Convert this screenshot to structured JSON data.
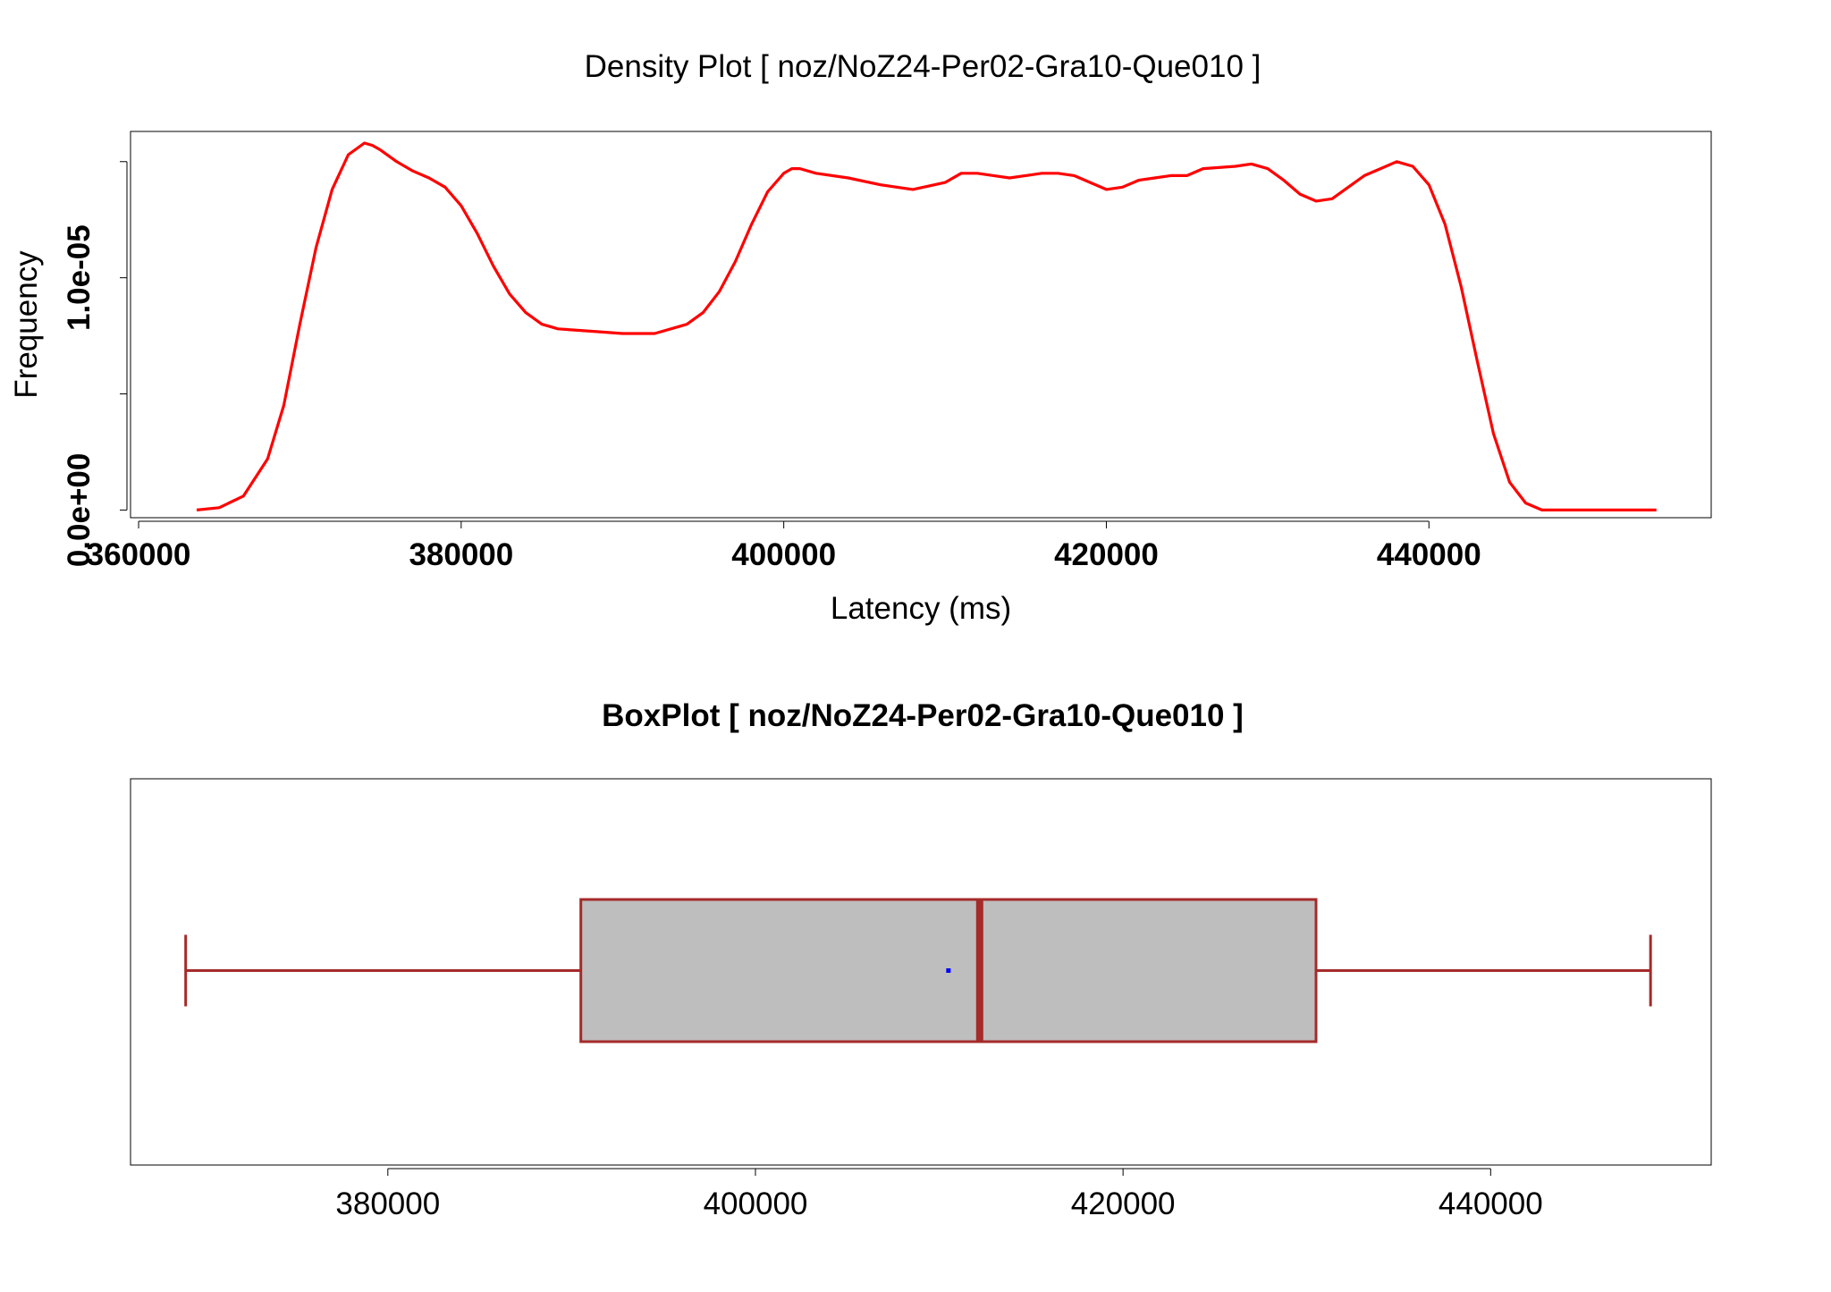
{
  "chart_data": [
    {
      "type": "line",
      "title": "Density Plot [ noz/NoZ24-Per02-Gra10-Que010 ]",
      "xlabel": "Latency (ms)",
      "ylabel": "Frequency",
      "xlim": [
        359500,
        457500
      ],
      "ylim": [
        -3.3e-07,
        1.63e-05
      ],
      "x_ticks": [
        360000,
        380000,
        400000,
        420000,
        440000
      ],
      "x_tick_labels": [
        "360000",
        "380000",
        "400000",
        "420000",
        "440000"
      ],
      "y_ticks": [
        0,
        5e-06,
        1e-05,
        1.5e-05
      ],
      "y_tick_labels": [
        {
          "value": 0,
          "label": "0.0e+00"
        },
        {
          "value": 1e-05,
          "label": "1.0e-05"
        }
      ],
      "grid": false,
      "color": "#ff0000",
      "series": [
        {
          "x": [
            363600,
            365000,
            366500,
            368000,
            369000,
            370000,
            371000,
            372000,
            373000,
            374000,
            374500,
            375000,
            376000,
            377000,
            378000,
            379000,
            380000,
            381000,
            382000,
            383000,
            384000,
            385000,
            386000,
            388000,
            390000,
            392000,
            394000,
            395000,
            396000,
            397000,
            398000,
            399000,
            400000,
            400500,
            401000,
            402000,
            404000,
            406000,
            408000,
            410000,
            411000,
            412000,
            413000,
            414000,
            415000,
            416000,
            417000,
            418000,
            419000,
            420000,
            421000,
            422000,
            423000,
            424000,
            425000,
            426000,
            428000,
            429000,
            430000,
            431000,
            432000,
            433000,
            434000,
            435000,
            436000,
            437000,
            438000,
            439000,
            440000,
            441000,
            442000,
            443000,
            444000,
            445000,
            446000,
            447000,
            448000,
            449000,
            450000,
            451000,
            452000,
            453000,
            454100
          ],
          "y": [
            0.0,
            1e-07,
            6e-07,
            2.2e-06,
            4.5e-06,
            8e-06,
            1.13e-05,
            1.38e-05,
            1.53e-05,
            1.58e-05,
            1.57e-05,
            1.55e-05,
            1.5e-05,
            1.46e-05,
            1.43e-05,
            1.39e-05,
            1.31e-05,
            1.19e-05,
            1.05e-05,
            9.3e-06,
            8.5e-06,
            8e-06,
            7.8e-06,
            7.7e-06,
            7.6e-06,
            7.6e-06,
            8e-06,
            8.5e-06,
            9.4e-06,
            1.07e-05,
            1.23e-05,
            1.37e-05,
            1.45e-05,
            1.47e-05,
            1.47e-05,
            1.45e-05,
            1.43e-05,
            1.4e-05,
            1.38e-05,
            1.41e-05,
            1.45e-05,
            1.45e-05,
            1.44e-05,
            1.43e-05,
            1.44e-05,
            1.45e-05,
            1.45e-05,
            1.44e-05,
            1.41e-05,
            1.38e-05,
            1.39e-05,
            1.42e-05,
            1.43e-05,
            1.44e-05,
            1.44e-05,
            1.47e-05,
            1.48e-05,
            1.49e-05,
            1.47e-05,
            1.42e-05,
            1.36e-05,
            1.33e-05,
            1.34e-05,
            1.39e-05,
            1.44e-05,
            1.47e-05,
            1.5e-05,
            1.48e-05,
            1.4e-05,
            1.23e-05,
            9.6e-06,
            6.4e-06,
            3.3e-06,
            1.2e-06,
            3e-07,
            0.0,
            0.0,
            0.0,
            0.0,
            0.0,
            0.0,
            0.0,
            0.0
          ]
        }
      ]
    },
    {
      "type": "box",
      "title": "BoxPlot [ noz/NoZ24-Per02-Gra10-Que010 ]",
      "orientation": "horizontal",
      "xlim": [
        366000,
        452000
      ],
      "x_ticks": [
        380000,
        400000,
        420000,
        440000
      ],
      "x_tick_labels": [
        "380000",
        "400000",
        "420000",
        "440000"
      ],
      "whisker_low": 369000,
      "q1": 390500,
      "median": 412200,
      "q3": 430500,
      "whisker_high": 448700,
      "mean": 410500,
      "box_fill": "#bebebe",
      "line_color": "#a52a2a",
      "mean_color": "#0000ff"
    }
  ]
}
